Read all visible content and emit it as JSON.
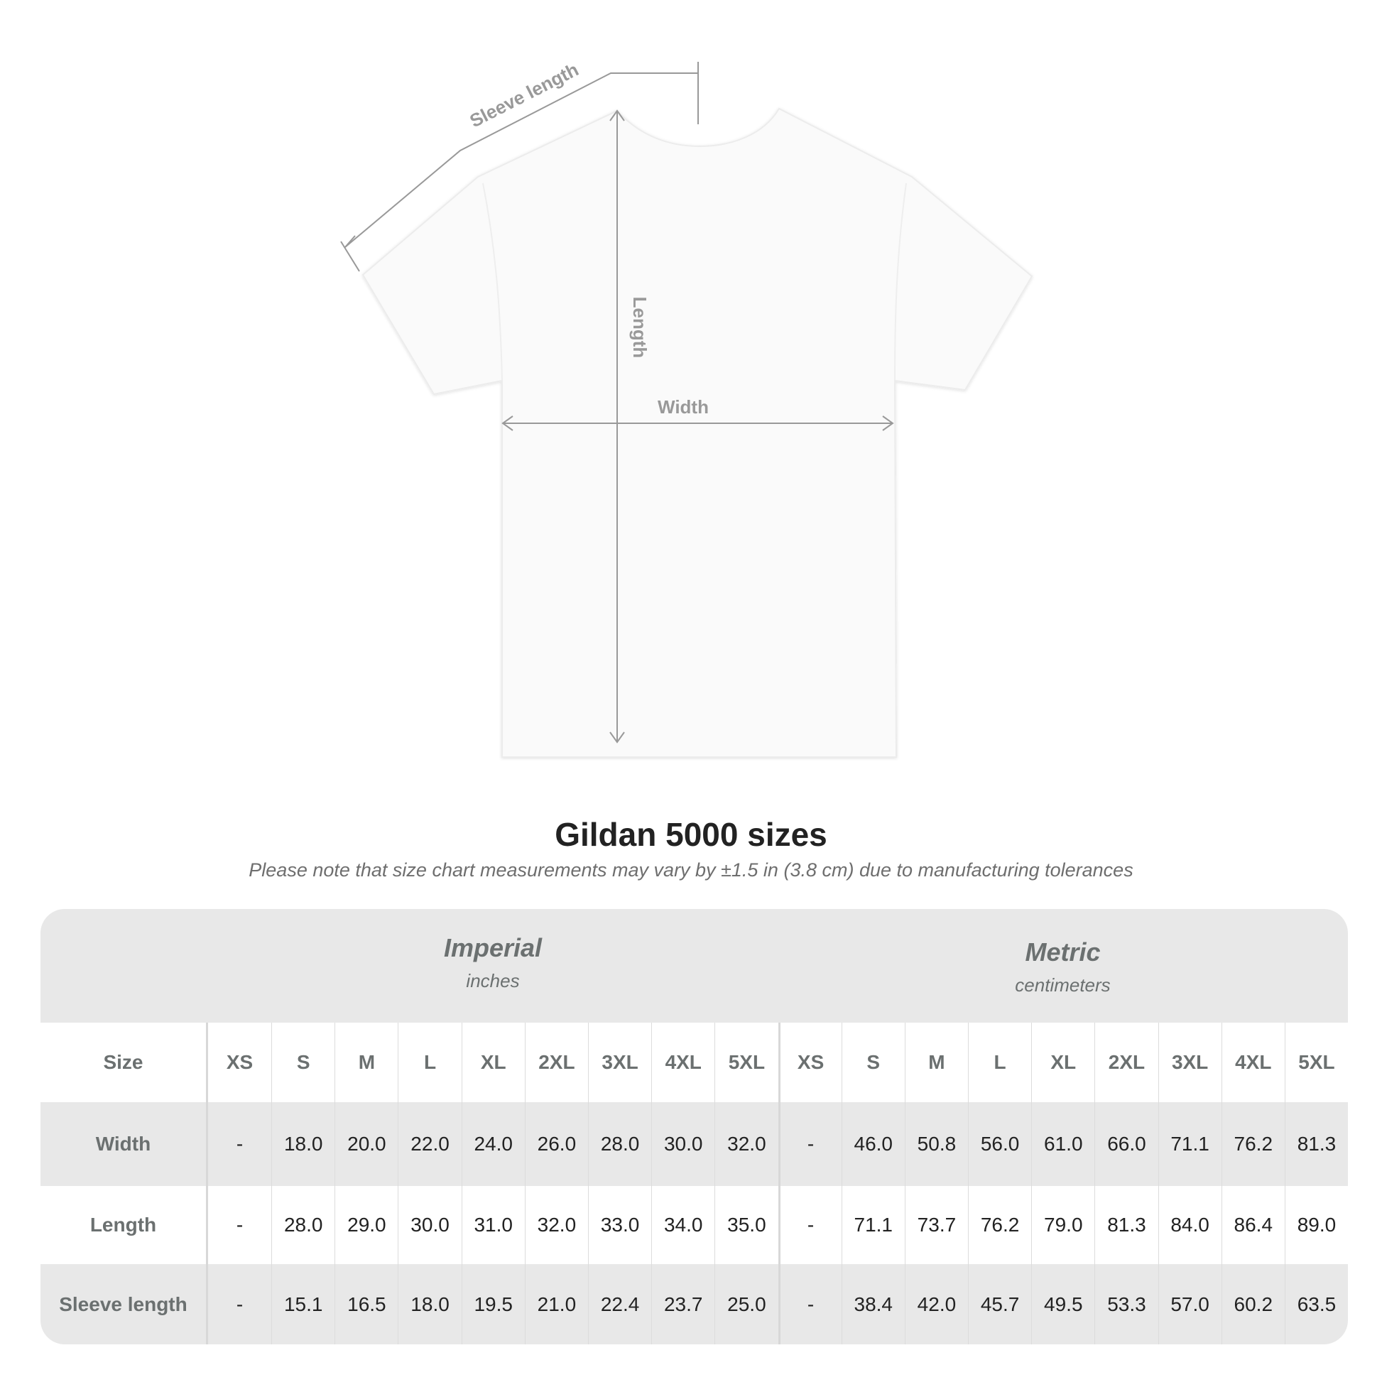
{
  "diagram": {
    "labels": {
      "sleeve": "Sleeve length",
      "length": "Length",
      "width": "Width"
    }
  },
  "title": "Gildan 5000 sizes",
  "subtitle": "Please note that size chart measurements may vary by ±1.5 in (3.8 cm) due to manufacturing tolerances",
  "table": {
    "imperial": {
      "name": "Imperial",
      "unit": "inches"
    },
    "metric": {
      "name": "Metric",
      "unit": "centimeters"
    },
    "size_label": "Size",
    "sizes": [
      "XS",
      "S",
      "M",
      "L",
      "XL",
      "2XL",
      "3XL",
      "4XL",
      "5XL"
    ],
    "rows": [
      {
        "label": "Width",
        "imperial": [
          "-",
          "18.0",
          "20.0",
          "22.0",
          "24.0",
          "26.0",
          "28.0",
          "30.0",
          "32.0"
        ],
        "metric": [
          "-",
          "46.0",
          "50.8",
          "56.0",
          "61.0",
          "66.0",
          "71.1",
          "76.2",
          "81.3"
        ]
      },
      {
        "label": "Length",
        "imperial": [
          "-",
          "28.0",
          "29.0",
          "30.0",
          "31.0",
          "32.0",
          "33.0",
          "34.0",
          "35.0"
        ],
        "metric": [
          "-",
          "71.1",
          "73.7",
          "76.2",
          "79.0",
          "81.3",
          "84.0",
          "86.4",
          "89.0"
        ]
      },
      {
        "label": "Sleeve length",
        "imperial": [
          "-",
          "15.1",
          "16.5",
          "18.0",
          "19.5",
          "21.0",
          "22.4",
          "23.7",
          "25.0"
        ],
        "metric": [
          "-",
          "38.4",
          "42.0",
          "45.7",
          "49.5",
          "53.3",
          "57.0",
          "60.2",
          "63.5"
        ]
      }
    ]
  },
  "colors": {
    "table_bg": "#e8e8e8",
    "header_text": "#6b7070",
    "annotation": "#999999"
  }
}
